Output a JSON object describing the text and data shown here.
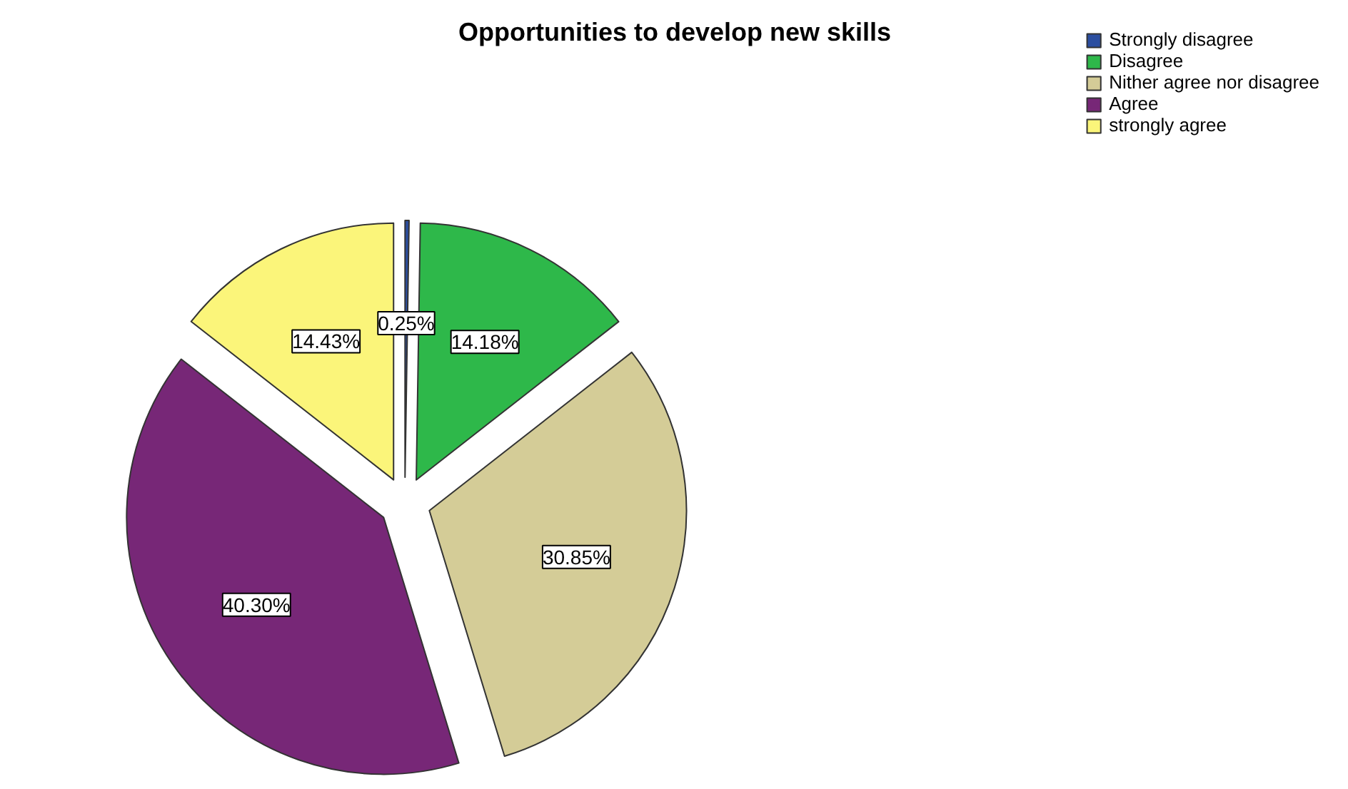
{
  "chart_data": {
    "type": "pie",
    "title": "Opportunities to develop new skills",
    "categories": [
      "Strongly disagree",
      "Disagree",
      "Nither agree nor disagree",
      "Agree",
      "strongly agree"
    ],
    "values": [
      0.25,
      14.18,
      30.85,
      40.3,
      14.43
    ],
    "colors": [
      "#2b4ea0",
      "#2eb84a",
      "#d4cc97",
      "#772777",
      "#fbf57a"
    ],
    "value_labels": [
      "0.25%",
      "14.18%",
      "30.85%",
      "40.30%",
      "14.43%"
    ],
    "legend": "top right"
  }
}
